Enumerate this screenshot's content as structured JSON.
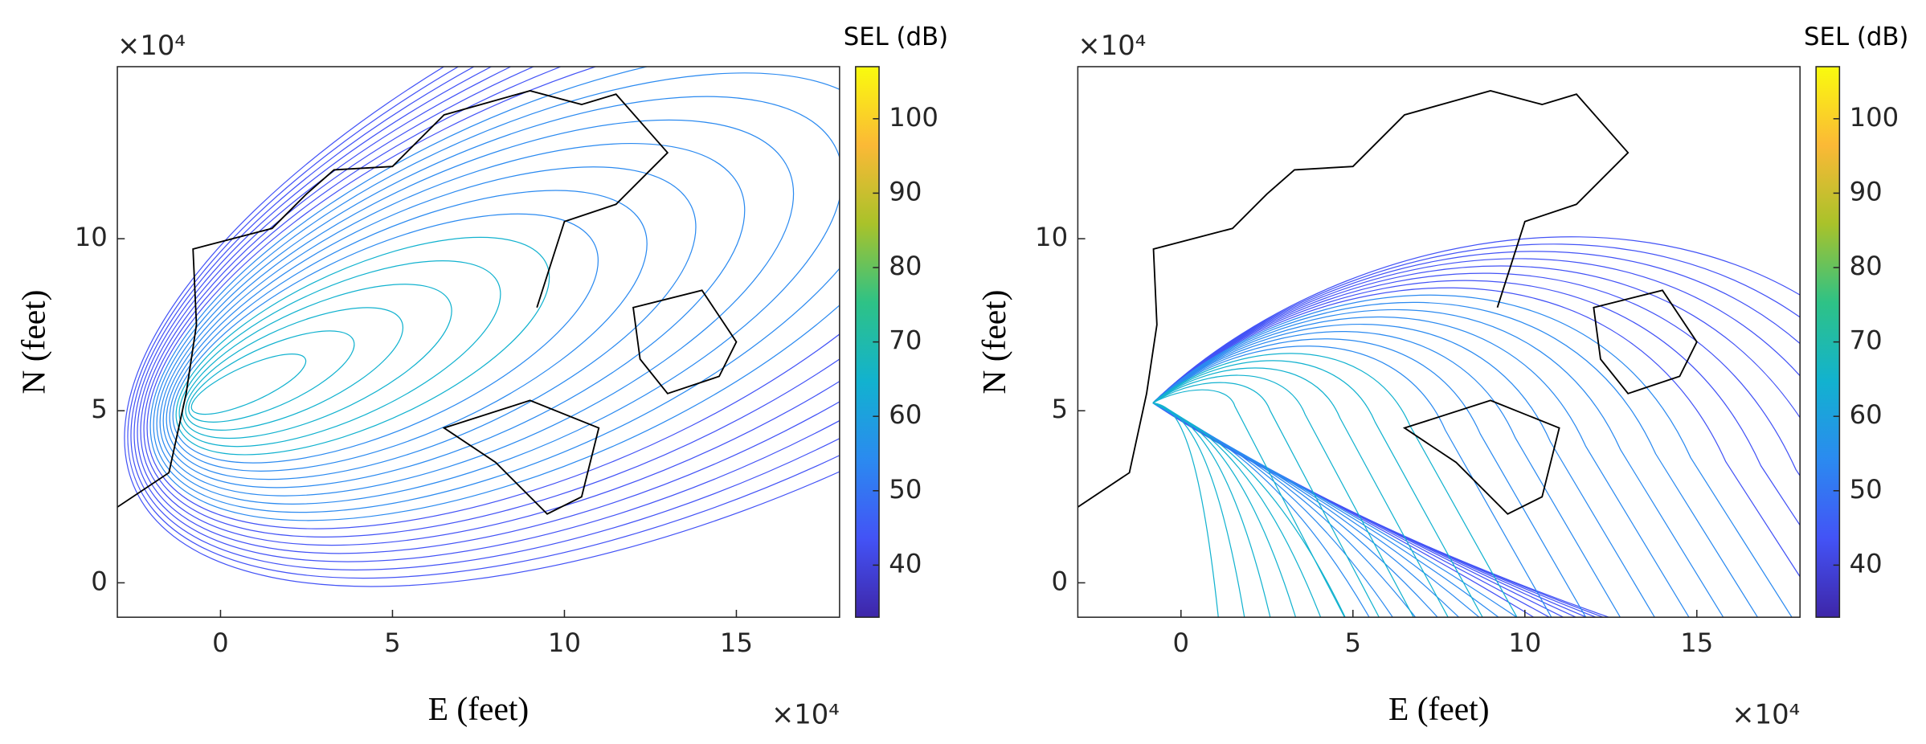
{
  "chart_data": [
    {
      "type": "contour",
      "x_label": "E (feet)",
      "y_label": "N (feet)",
      "x_offset_label": "×10⁴",
      "y_offset_label": "×10⁴",
      "colorbar_label": "SEL (dB)",
      "xlim": [
        -3,
        18
      ],
      "ylim": [
        -1,
        15
      ],
      "xticks": [
        0,
        5,
        10,
        15
      ],
      "yticks": [
        0,
        5,
        10
      ],
      "clim": [
        33,
        107
      ],
      "cticks": [
        40,
        50,
        60,
        70,
        80,
        90,
        100
      ],
      "colormap": [
        "#3e26a8",
        "#4353f6",
        "#2b8af0",
        "#12b2cf",
        "#2ec286",
        "#a9c22a",
        "#fbb936",
        "#f9fb0e"
      ]
    },
    {
      "type": "contour",
      "x_label": "E (feet)",
      "y_label": "N (feet)",
      "x_offset_label": "×10⁴",
      "y_offset_label": "×10⁴",
      "colorbar_label": "SEL (dB)",
      "xlim": [
        -3,
        18
      ],
      "ylim": [
        -1,
        15
      ],
      "xticks": [
        0,
        5,
        10,
        15
      ],
      "yticks": [
        0,
        5,
        10
      ],
      "clim": [
        33,
        107
      ],
      "cticks": [
        40,
        50,
        60,
        70,
        80,
        90,
        100
      ],
      "colormap": [
        "#3e26a8",
        "#4353f6",
        "#2b8af0",
        "#12b2cf",
        "#2ec286",
        "#a9c22a",
        "#fbb936",
        "#f9fb0e"
      ]
    }
  ]
}
